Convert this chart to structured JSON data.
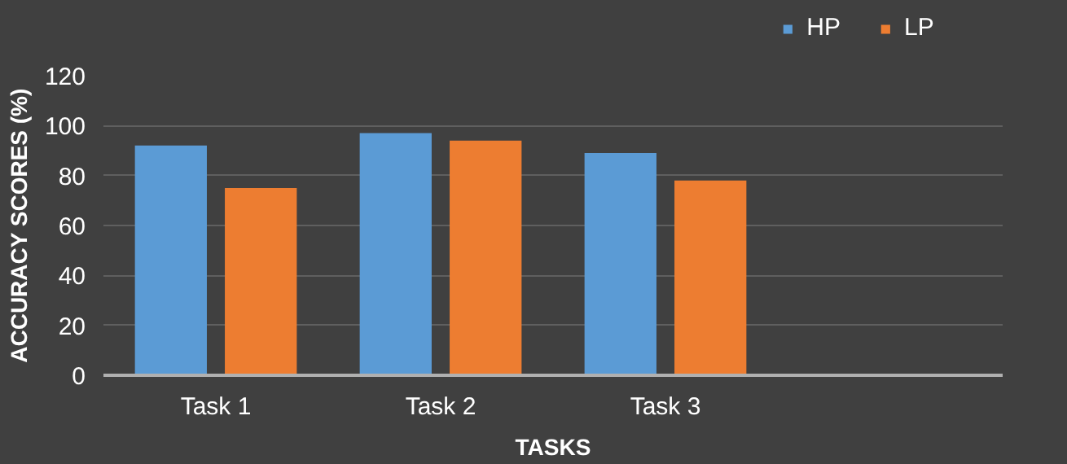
{
  "chart_data": {
    "type": "bar",
    "xlabel": "TASKS",
    "ylabel": "ACCURACY SCORES (%)",
    "categories": [
      "Task 1",
      "Task 2",
      "Task 3",
      null
    ],
    "series": [
      {
        "name": "HP",
        "color": "#5b9bd5",
        "values": [
          92,
          97,
          89,
          null
        ]
      },
      {
        "name": "LP",
        "color": "#ed7d31",
        "values": [
          75,
          94,
          78,
          null
        ]
      }
    ],
    "ylim": [
      0,
      120
    ],
    "yticks": [
      0,
      20,
      40,
      60,
      80,
      100,
      120
    ],
    "grid": "y",
    "legend": "top right"
  }
}
